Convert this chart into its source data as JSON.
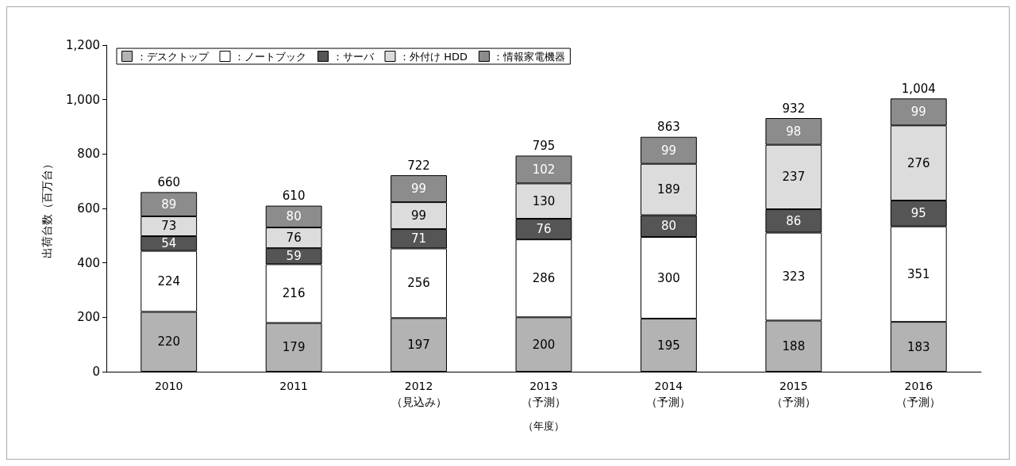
{
  "chart_data": {
    "type": "bar",
    "stacked": true,
    "data_labels": true,
    "legend": "top left",
    "grid": false,
    "xlabel": "（年度）",
    "ylabel": "出荷台数（百万台）",
    "categories": [
      "2010",
      "2011",
      "2012\n（見込み）",
      "2013\n（予測）",
      "2014\n（予測）",
      "2015\n（予測）",
      "2016\n（予測）"
    ],
    "ylim": [
      0,
      1200
    ],
    "yticks": [
      0,
      200,
      400,
      600,
      800,
      {
        "value": 1000,
        "label": "1,000"
      },
      {
        "value": 1200,
        "label": "1,200"
      }
    ],
    "series": [
      {
        "name": "：デスクトップ",
        "color": "#b3b3b3",
        "values": [
          220,
          179,
          197,
          200,
          195,
          188,
          183
        ]
      },
      {
        "name": "：ノートブック",
        "color": "#ffffff",
        "values": [
          224,
          216,
          256,
          286,
          300,
          323,
          351
        ]
      },
      {
        "name": "：サーバ",
        "color": "#555555",
        "values": [
          54,
          59,
          71,
          76,
          80,
          86,
          95
        ]
      },
      {
        "name": "：外付け HDD",
        "color": "#dcdcdc",
        "values": [
          73,
          76,
          99,
          130,
          189,
          237,
          276
        ]
      },
      {
        "name": "：情報家電機器",
        "color": "#8c8c8c",
        "values": [
          89,
          80,
          99,
          102,
          99,
          98,
          99
        ]
      }
    ],
    "totals": [
      "660",
      "610",
      "722",
      "795",
      "863",
      "932",
      "1,004"
    ]
  }
}
